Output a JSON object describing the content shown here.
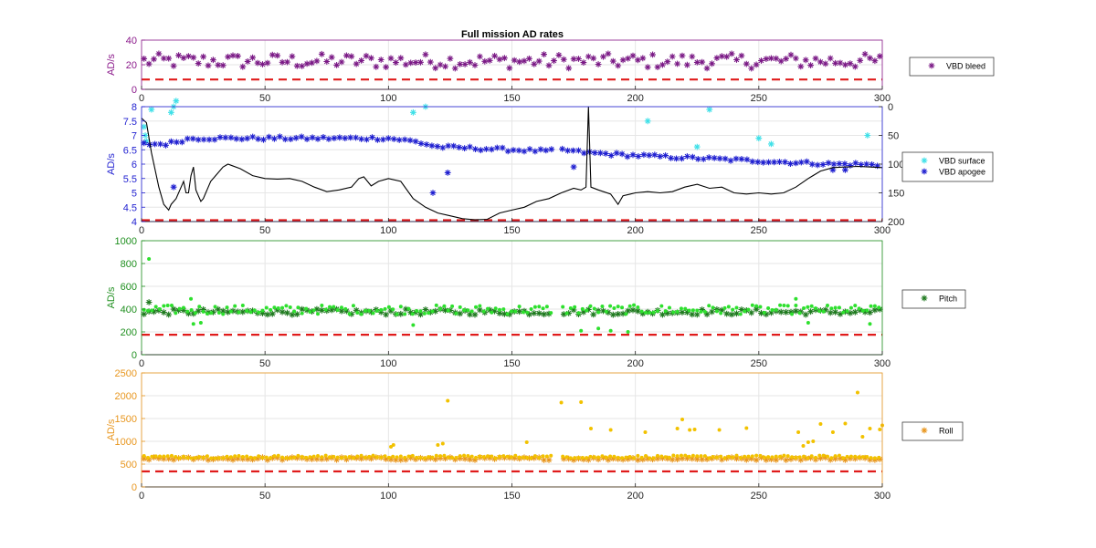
{
  "figure": {
    "title": "Full mission AD rates"
  },
  "chart_data": [
    {
      "type": "scatter",
      "panel": "vbd-bleed",
      "xlim": [
        0,
        300
      ],
      "ylim": [
        0,
        40
      ],
      "xticks": [
        0,
        50,
        100,
        150,
        200,
        250,
        300
      ],
      "yticks": [
        0,
        20,
        40
      ],
      "ylabel": "AD/s",
      "ylabel_color": "#8b1a8b",
      "grid": true,
      "legend_placement": "right",
      "series": [
        {
          "name": "VBD bleed",
          "marker": "*",
          "color": "#7b1a86",
          "x_range": [
            0,
            300
          ],
          "y_typical": 23,
          "y_spread": 6,
          "gap": null
        }
      ],
      "threshold": {
        "y": 8,
        "color": "#e01b1b",
        "style": "dashed"
      }
    },
    {
      "type": "scatter",
      "panel": "vbd-surface-apogee",
      "xlim": [
        0,
        300
      ],
      "ylim": [
        4,
        8
      ],
      "xticks": [
        0,
        50,
        100,
        150,
        200,
        250,
        300
      ],
      "yticks": [
        4,
        4.5,
        5,
        5.5,
        6,
        6.5,
        7,
        7.5,
        8
      ],
      "y2lim": [
        200,
        0
      ],
      "y2ticks": [
        0,
        50,
        100,
        150,
        200
      ],
      "ylabel": "AD/s",
      "ylabel_color": "#1f1fd0",
      "grid": true,
      "legend_placement": "right",
      "series": [
        {
          "name": "VBD surface",
          "marker": "*",
          "color": "#3fe0e8",
          "points": [
            [
              1,
              7.3
            ],
            [
              1.5,
              7.0
            ],
            [
              2,
              6.8
            ],
            [
              4,
              7.9
            ],
            [
              12,
              7.8
            ],
            [
              13,
              8.0
            ],
            [
              14,
              8.2
            ],
            [
              110,
              7.8
            ],
            [
              115,
              8.0
            ],
            [
              205,
              7.5
            ],
            [
              225,
              6.6
            ],
            [
              230,
              7.9
            ],
            [
              250,
              6.9
            ],
            [
              255,
              6.7
            ],
            [
              294,
              7.0
            ]
          ]
        },
        {
          "name": "VBD apogee",
          "marker": "*",
          "color": "#1f1fd0",
          "profile": [
            [
              0,
              6.7
            ],
            [
              10,
              6.7
            ],
            [
              20,
              6.9
            ],
            [
              50,
              6.9
            ],
            [
              100,
              6.9
            ],
            [
              110,
              6.8
            ],
            [
              120,
              6.6
            ],
            [
              165,
              6.45
            ],
            [
              170,
              6.5
            ],
            [
              180,
              6.4
            ],
            [
              200,
              6.3
            ],
            [
              240,
              6.15
            ],
            [
              280,
              6.0
            ],
            [
              290,
              6.0
            ],
            [
              300,
              5.95
            ]
          ],
          "gap": [
            166,
            170
          ],
          "outliers": [
            [
              13,
              5.2
            ],
            [
              118,
              5.0
            ],
            [
              124,
              5.7
            ],
            [
              175,
              5.9
            ],
            [
              280,
              5.8
            ],
            [
              285,
              5.8
            ]
          ]
        },
        {
          "name": "depth",
          "marker": "line",
          "color": "#000000",
          "axis": "y2",
          "points": [
            [
              0,
              20
            ],
            [
              2,
              28
            ],
            [
              4,
              80
            ],
            [
              7,
              140
            ],
            [
              9,
              170
            ],
            [
              11,
              180
            ],
            [
              12,
              170
            ],
            [
              14,
              160
            ],
            [
              16,
              140
            ],
            [
              17,
              130
            ],
            [
              18,
              150
            ],
            [
              19,
              150
            ],
            [
              20,
              120
            ],
            [
              21,
              105
            ],
            [
              22,
              145
            ],
            [
              23,
              155
            ],
            [
              24,
              165
            ],
            [
              25,
              160
            ],
            [
              26,
              150
            ],
            [
              27,
              140
            ],
            [
              28,
              130
            ],
            [
              30,
              120
            ],
            [
              33,
              105
            ],
            [
              35,
              100
            ],
            [
              40,
              108
            ],
            [
              45,
              120
            ],
            [
              50,
              125
            ],
            [
              55,
              126
            ],
            [
              60,
              125
            ],
            [
              65,
              130
            ],
            [
              70,
              140
            ],
            [
              75,
              148
            ],
            [
              80,
              145
            ],
            [
              85,
              140
            ],
            [
              88,
              125
            ],
            [
              90,
              122
            ],
            [
              93,
              138
            ],
            [
              96,
              130
            ],
            [
              100,
              125
            ],
            [
              105,
              130
            ],
            [
              110,
              160
            ],
            [
              115,
              175
            ],
            [
              120,
              185
            ],
            [
              125,
              190
            ],
            [
              130,
              195
            ],
            [
              135,
              197
            ],
            [
              140,
              196
            ],
            [
              145,
              185
            ],
            [
              150,
              180
            ],
            [
              155,
              175
            ],
            [
              160,
              165
            ],
            [
              165,
              160
            ],
            [
              170,
              150
            ],
            [
              175,
              142
            ],
            [
              178,
              145
            ],
            [
              180,
              140
            ],
            [
              181,
              0
            ],
            [
              182,
              140
            ],
            [
              185,
              145
            ],
            [
              190,
              152
            ],
            [
              193,
              170
            ],
            [
              195,
              155
            ],
            [
              198,
              152
            ],
            [
              200,
              150
            ],
            [
              205,
              148
            ],
            [
              210,
              150
            ],
            [
              215,
              148
            ],
            [
              220,
              140
            ],
            [
              225,
              135
            ],
            [
              230,
              142
            ],
            [
              235,
              140
            ],
            [
              240,
              150
            ],
            [
              245,
              152
            ],
            [
              250,
              150
            ],
            [
              255,
              152
            ],
            [
              260,
              150
            ],
            [
              265,
              140
            ],
            [
              270,
              125
            ],
            [
              275,
              112
            ],
            [
              280,
              106
            ],
            [
              290,
              104
            ],
            [
              300,
              106
            ]
          ]
        }
      ],
      "threshold": {
        "y": 4.05,
        "color": "#e01b1b",
        "style": "dashed"
      }
    },
    {
      "type": "scatter",
      "panel": "pitch",
      "xlim": [
        0,
        300
      ],
      "ylim": [
        0,
        1000
      ],
      "xticks": [
        0,
        50,
        100,
        150,
        200,
        250,
        300
      ],
      "yticks": [
        0,
        200,
        400,
        600,
        800,
        1000
      ],
      "ylabel": "AD/s",
      "ylabel_color": "#1f8f1f",
      "grid": true,
      "legend_placement": "right",
      "series": [
        {
          "name": "Pitch",
          "marker": "*",
          "color": "#1f7a1f",
          "x_range": [
            0,
            300
          ],
          "y_typical": 375,
          "y_spread": 25,
          "gap": [
            166,
            170
          ],
          "outliers": [
            [
              3,
              460
            ]
          ]
        },
        {
          "name": "",
          "marker": ".",
          "color": "#2ee02e",
          "x_range": [
            0,
            300
          ],
          "y_typical": 395,
          "y_spread": 40,
          "gap": [
            166,
            170
          ],
          "outliers": [
            [
              3,
              840
            ],
            [
              20,
              490
            ],
            [
              21,
              270
            ],
            [
              24,
              280
            ],
            [
              110,
              260
            ],
            [
              178,
              210
            ],
            [
              185,
              230
            ],
            [
              190,
              210
            ],
            [
              197,
              200
            ],
            [
              265,
              490
            ],
            [
              270,
              280
            ],
            [
              295,
              270
            ]
          ]
        }
      ],
      "threshold": {
        "y": 175,
        "color": "#e01b1b",
        "style": "dashed"
      }
    },
    {
      "type": "scatter",
      "panel": "roll",
      "xlim": [
        0,
        300
      ],
      "ylim": [
        0,
        2500
      ],
      "xticks": [
        0,
        50,
        100,
        150,
        200,
        250,
        300
      ],
      "yticks": [
        0,
        500,
        1000,
        1500,
        2000,
        2500
      ],
      "ylabel": "AD/s",
      "ylabel_color": "#e8961e",
      "grid": true,
      "legend_placement": "right",
      "series": [
        {
          "name": "Roll",
          "marker": "*",
          "color": "#e8961e",
          "x_range": [
            0,
            300
          ],
          "y_typical": 620,
          "y_spread": 30,
          "gap": [
            166,
            170
          ]
        },
        {
          "name": "",
          "marker": ".",
          "color": "#f2c200",
          "x_range": [
            0,
            300
          ],
          "y_typical": 660,
          "y_spread": 30,
          "gap": [
            166,
            170
          ],
          "outliers": [
            [
              101,
              880
            ],
            [
              102,
              920
            ],
            [
              120,
              920
            ],
            [
              122,
              950
            ],
            [
              124,
              1890
            ],
            [
              156,
              980
            ],
            [
              170,
              1850
            ],
            [
              178,
              1860
            ],
            [
              182,
              1280
            ],
            [
              190,
              1250
            ],
            [
              204,
              1200
            ],
            [
              217,
              1280
            ],
            [
              219,
              1480
            ],
            [
              222,
              1250
            ],
            [
              224,
              1260
            ],
            [
              234,
              1250
            ],
            [
              245,
              1290
            ],
            [
              266,
              1200
            ],
            [
              268,
              900
            ],
            [
              270,
              980
            ],
            [
              272,
              1000
            ],
            [
              275,
              1380
            ],
            [
              280,
              1200
            ],
            [
              285,
              1390
            ],
            [
              290,
              2070
            ],
            [
              292,
              1100
            ],
            [
              295,
              1280
            ],
            [
              299,
              1260
            ],
            [
              300,
              1350
            ]
          ]
        }
      ],
      "threshold": {
        "y": 340,
        "color": "#e01b1b",
        "style": "dashed"
      }
    }
  ]
}
